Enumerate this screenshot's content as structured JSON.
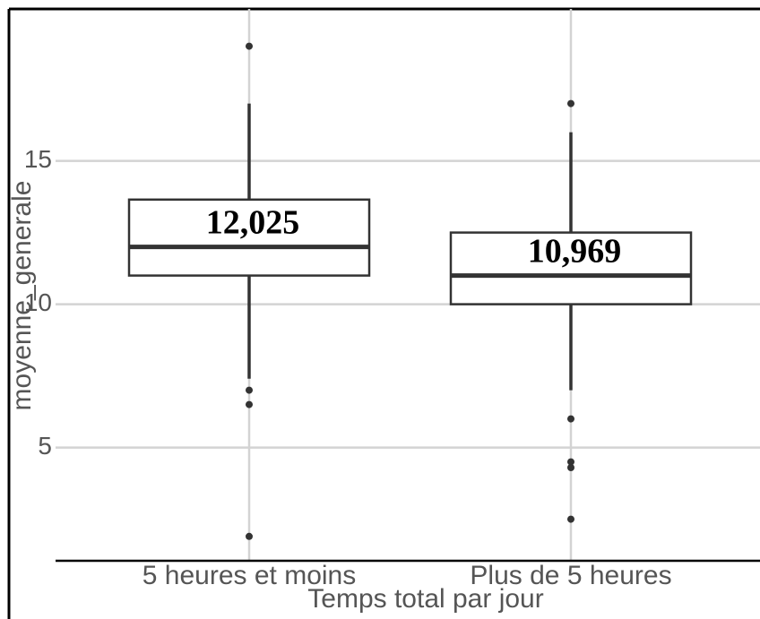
{
  "chart_data": {
    "type": "box",
    "x_label": "Temps total par jour",
    "y_label": "moyenne_generale",
    "categories": [
      "5 heures et moins",
      "Plus de 5 heures"
    ],
    "boxes": [
      {
        "whisker_low": 7.4,
        "q1": 11,
        "median": 12,
        "q3": 13.65,
        "whisker_high": 17,
        "outliers": [
          19,
          7,
          6.5,
          1.9
        ]
      },
      {
        "whisker_low": 7,
        "q1": 10,
        "median": 11,
        "q3": 12.5,
        "whisker_high": 16,
        "outliers": [
          17,
          6,
          4.5,
          4.3,
          2.5
        ]
      }
    ],
    "means": [
      12.025,
      10.969
    ],
    "value_labels": [
      "12,025",
      "10,969"
    ],
    "ylim": [
      1.05,
      20.3
    ],
    "yticks": [
      5,
      10,
      15
    ],
    "grid": true
  }
}
